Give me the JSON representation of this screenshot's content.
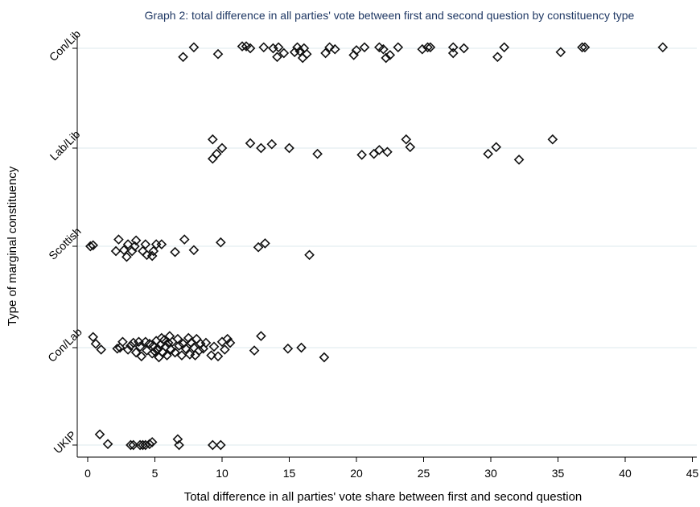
{
  "chart_data": {
    "type": "scatter",
    "title": "Graph 2: total difference in all parties' vote between first and second question by constituency type",
    "xlabel": "Total difference in all parties' vote share between first and second question",
    "ylabel": "Type of marginal constituency",
    "xlim": [
      0,
      45
    ],
    "x_ticks": [
      0,
      5,
      10,
      15,
      20,
      25,
      30,
      35,
      40,
      45
    ],
    "grid": "horizontal",
    "marker": "hollow-diamond",
    "categories": [
      "Con/Lib",
      "Lab/Lib",
      "Scottish",
      "Con/Lab",
      "UKIP"
    ],
    "series": [
      {
        "category": "Con/Lib",
        "points": [
          {
            "x": 7.1,
            "y": -0.09
          },
          {
            "x": 7.9,
            "y": 0.01
          },
          {
            "x": 9.7,
            "y": -0.06
          },
          {
            "x": 11.5,
            "y": 0.02
          },
          {
            "x": 11.8,
            "y": 0.02
          },
          {
            "x": 12.1,
            "y": 0.0
          },
          {
            "x": 13.1,
            "y": 0.01
          },
          {
            "x": 13.8,
            "y": 0.0
          },
          {
            "x": 14.1,
            "y": -0.09
          },
          {
            "x": 14.2,
            "y": 0.01
          },
          {
            "x": 14.6,
            "y": -0.05
          },
          {
            "x": 15.4,
            "y": -0.04
          },
          {
            "x": 15.6,
            "y": 0.01
          },
          {
            "x": 15.8,
            "y": -0.03
          },
          {
            "x": 16.0,
            "y": -0.1
          },
          {
            "x": 16.1,
            "y": 0.0
          },
          {
            "x": 16.3,
            "y": -0.06
          },
          {
            "x": 17.7,
            "y": -0.05
          },
          {
            "x": 18.0,
            "y": 0.01
          },
          {
            "x": 18.4,
            "y": -0.01
          },
          {
            "x": 19.8,
            "y": -0.07
          },
          {
            "x": 20.0,
            "y": -0.02
          },
          {
            "x": 20.6,
            "y": 0.01
          },
          {
            "x": 21.7,
            "y": 0.01
          },
          {
            "x": 22.0,
            "y": -0.01
          },
          {
            "x": 22.2,
            "y": -0.1
          },
          {
            "x": 22.5,
            "y": -0.07
          },
          {
            "x": 23.1,
            "y": 0.01
          },
          {
            "x": 24.9,
            "y": -0.01
          },
          {
            "x": 25.3,
            "y": 0.01
          },
          {
            "x": 25.5,
            "y": 0.01
          },
          {
            "x": 27.2,
            "y": 0.01
          },
          {
            "x": 27.2,
            "y": -0.05
          },
          {
            "x": 28.0,
            "y": 0.0
          },
          {
            "x": 30.5,
            "y": -0.09
          },
          {
            "x": 31.0,
            "y": 0.01
          },
          {
            "x": 35.2,
            "y": -0.04
          },
          {
            "x": 36.8,
            "y": 0.01
          },
          {
            "x": 37.0,
            "y": 0.01
          },
          {
            "x": 42.8,
            "y": 0.01
          }
        ]
      },
      {
        "category": "Lab/Lib",
        "points": [
          {
            "x": 9.3,
            "y": 0.09
          },
          {
            "x": 9.3,
            "y": -0.11
          },
          {
            "x": 9.6,
            "y": -0.06
          },
          {
            "x": 10.0,
            "y": 0.0
          },
          {
            "x": 12.1,
            "y": 0.05
          },
          {
            "x": 12.9,
            "y": 0.0
          },
          {
            "x": 13.7,
            "y": 0.04
          },
          {
            "x": 15.0,
            "y": 0.0
          },
          {
            "x": 17.1,
            "y": -0.06
          },
          {
            "x": 20.4,
            "y": -0.07
          },
          {
            "x": 21.3,
            "y": -0.06
          },
          {
            "x": 21.7,
            "y": -0.02
          },
          {
            "x": 22.3,
            "y": -0.04
          },
          {
            "x": 23.7,
            "y": 0.09
          },
          {
            "x": 24.0,
            "y": 0.01
          },
          {
            "x": 29.8,
            "y": -0.06
          },
          {
            "x": 30.4,
            "y": 0.01
          },
          {
            "x": 32.1,
            "y": -0.12
          },
          {
            "x": 34.6,
            "y": 0.09
          }
        ]
      },
      {
        "category": "Scottish",
        "points": [
          {
            "x": 0.2,
            "y": 0.0
          },
          {
            "x": 0.4,
            "y": 0.01
          },
          {
            "x": 2.1,
            "y": -0.05
          },
          {
            "x": 2.3,
            "y": 0.07
          },
          {
            "x": 2.7,
            "y": -0.04
          },
          {
            "x": 2.9,
            "y": -0.11
          },
          {
            "x": 3.0,
            "y": 0.02
          },
          {
            "x": 3.3,
            "y": -0.05
          },
          {
            "x": 3.5,
            "y": 0.0
          },
          {
            "x": 3.6,
            "y": 0.06
          },
          {
            "x": 4.1,
            "y": -0.05
          },
          {
            "x": 4.3,
            "y": 0.02
          },
          {
            "x": 4.4,
            "y": -0.09
          },
          {
            "x": 4.9,
            "y": -0.05
          },
          {
            "x": 4.8,
            "y": -0.1
          },
          {
            "x": 5.1,
            "y": 0.02
          },
          {
            "x": 5.5,
            "y": 0.02
          },
          {
            "x": 6.5,
            "y": -0.06
          },
          {
            "x": 7.2,
            "y": 0.07
          },
          {
            "x": 7.9,
            "y": -0.04
          },
          {
            "x": 9.9,
            "y": 0.04
          },
          {
            "x": 12.7,
            "y": -0.01
          },
          {
            "x": 13.2,
            "y": 0.03
          },
          {
            "x": 16.5,
            "y": -0.09
          }
        ]
      },
      {
        "category": "Con/Lab",
        "points": [
          {
            "x": 0.4,
            "y": 0.11
          },
          {
            "x": 0.6,
            "y": 0.04
          },
          {
            "x": 1.0,
            "y": -0.02
          },
          {
            "x": 2.2,
            "y": -0.01
          },
          {
            "x": 2.4,
            "y": 0.0
          },
          {
            "x": 2.6,
            "y": 0.06
          },
          {
            "x": 3.0,
            "y": -0.02
          },
          {
            "x": 3.2,
            "y": 0.02
          },
          {
            "x": 3.4,
            "y": 0.05
          },
          {
            "x": 3.6,
            "y": -0.05
          },
          {
            "x": 3.8,
            "y": 0.06
          },
          {
            "x": 3.9,
            "y": 0.01
          },
          {
            "x": 4.0,
            "y": -0.09
          },
          {
            "x": 4.3,
            "y": 0.06
          },
          {
            "x": 4.4,
            "y": -0.03
          },
          {
            "x": 4.6,
            "y": 0.04
          },
          {
            "x": 4.8,
            "y": -0.06
          },
          {
            "x": 4.9,
            "y": 0.02
          },
          {
            "x": 5.0,
            "y": -0.04
          },
          {
            "x": 5.1,
            "y": 0.07
          },
          {
            "x": 5.2,
            "y": -0.01
          },
          {
            "x": 5.3,
            "y": -0.1
          },
          {
            "x": 5.4,
            "y": 0.03
          },
          {
            "x": 5.5,
            "y": 0.1
          },
          {
            "x": 5.6,
            "y": -0.05
          },
          {
            "x": 5.7,
            "y": 0.08
          },
          {
            "x": 5.8,
            "y": 0.01
          },
          {
            "x": 5.9,
            "y": -0.08
          },
          {
            "x": 6.0,
            "y": 0.05
          },
          {
            "x": 6.1,
            "y": 0.12
          },
          {
            "x": 6.2,
            "y": -0.02
          },
          {
            "x": 6.3,
            "y": 0.06
          },
          {
            "x": 6.5,
            "y": -0.05
          },
          {
            "x": 6.7,
            "y": 0.09
          },
          {
            "x": 6.8,
            "y": 0.02
          },
          {
            "x": 7.0,
            "y": -0.08
          },
          {
            "x": 7.1,
            "y": 0.04
          },
          {
            "x": 7.3,
            "y": -0.01
          },
          {
            "x": 7.5,
            "y": 0.1
          },
          {
            "x": 7.6,
            "y": -0.07
          },
          {
            "x": 7.7,
            "y": 0.05
          },
          {
            "x": 7.9,
            "y": 0.0
          },
          {
            "x": 8.0,
            "y": -0.08
          },
          {
            "x": 8.1,
            "y": 0.09
          },
          {
            "x": 8.3,
            "y": -0.03
          },
          {
            "x": 8.4,
            "y": 0.04
          },
          {
            "x": 8.6,
            "y": -0.01
          },
          {
            "x": 8.8,
            "y": 0.05
          },
          {
            "x": 9.2,
            "y": -0.08
          },
          {
            "x": 9.4,
            "y": 0.01
          },
          {
            "x": 9.7,
            "y": -0.09
          },
          {
            "x": 10.0,
            "y": 0.06
          },
          {
            "x": 10.2,
            "y": -0.02
          },
          {
            "x": 10.4,
            "y": 0.09
          },
          {
            "x": 10.6,
            "y": 0.05
          },
          {
            "x": 12.4,
            "y": -0.03
          },
          {
            "x": 12.9,
            "y": 0.12
          },
          {
            "x": 14.9,
            "y": -0.01
          },
          {
            "x": 15.9,
            "y": 0.0
          },
          {
            "x": 17.6,
            "y": -0.1
          }
        ]
      },
      {
        "category": "UKIP",
        "points": [
          {
            "x": 0.9,
            "y": 0.11
          },
          {
            "x": 1.5,
            "y": 0.01
          },
          {
            "x": 3.2,
            "y": 0.0
          },
          {
            "x": 3.4,
            "y": 0.0
          },
          {
            "x": 3.9,
            "y": 0.0
          },
          {
            "x": 4.1,
            "y": 0.0
          },
          {
            "x": 4.3,
            "y": 0.0
          },
          {
            "x": 4.6,
            "y": 0.01
          },
          {
            "x": 4.8,
            "y": 0.03
          },
          {
            "x": 6.7,
            "y": 0.06
          },
          {
            "x": 6.8,
            "y": 0.0
          },
          {
            "x": 9.3,
            "y": 0.0
          },
          {
            "x": 9.9,
            "y": 0.0
          }
        ]
      }
    ]
  }
}
